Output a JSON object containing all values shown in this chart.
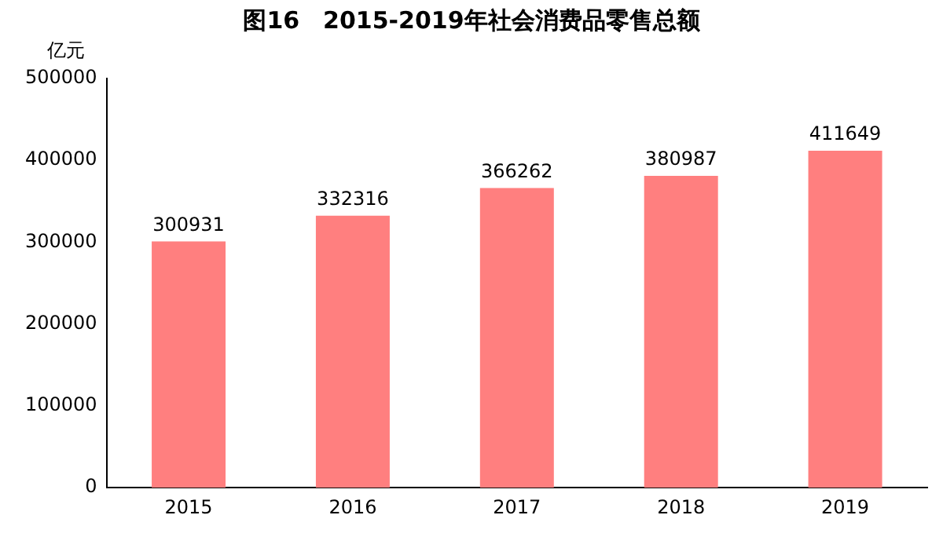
{
  "chart_data": {
    "type": "bar",
    "title": "图16　2015-2019年社会消费品零售总额",
    "ylabel": "亿元",
    "categories": [
      "2015",
      "2016",
      "2017",
      "2018",
      "2019"
    ],
    "values": [
      300931,
      332316,
      366262,
      380987,
      411649
    ],
    "color": "#ff7f7f",
    "ylim": [
      0,
      500000
    ],
    "yticks": [
      0,
      100000,
      200000,
      300000,
      400000,
      500000
    ],
    "grid": false,
    "legend": false,
    "data_labels": true
  }
}
